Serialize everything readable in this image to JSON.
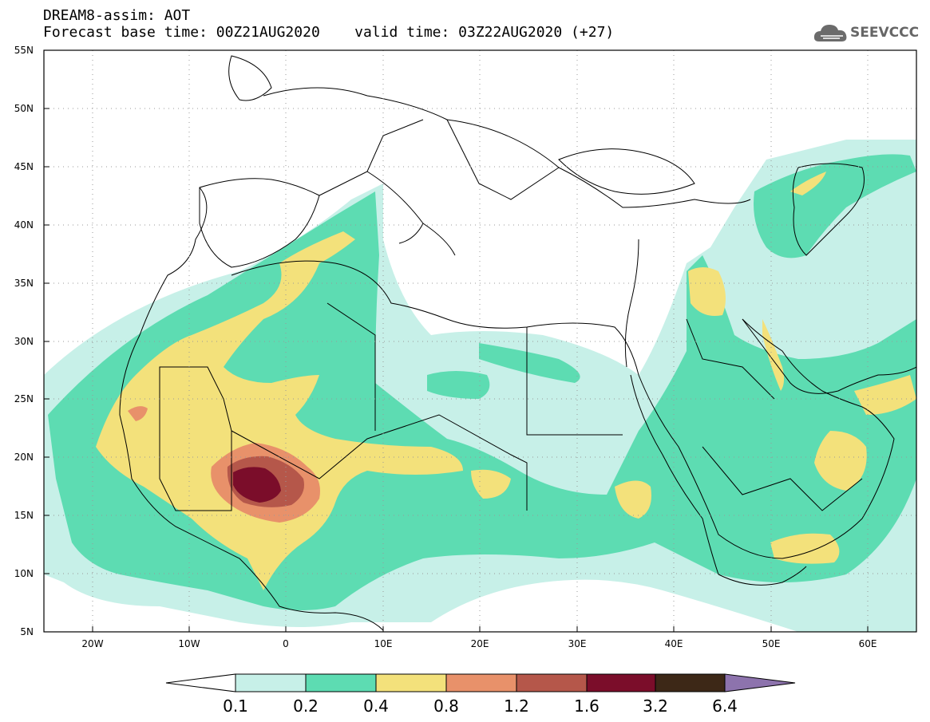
{
  "header": {
    "line1": "DREAM8-assim: AOT",
    "line2": "Forecast base time: 00Z21AUG2020    valid time: 03Z22AUG2020 (+27)"
  },
  "logo": {
    "text": "SEEVCCC",
    "icon": "cloud-icon"
  },
  "map": {
    "lon_range": [
      -25,
      65
    ],
    "lat_range": [
      5,
      55
    ],
    "lat_labels": [
      "55N",
      "50N",
      "45N",
      "40N",
      "35N",
      "30N",
      "25N",
      "20N",
      "15N",
      "10N",
      "5N"
    ],
    "lon_labels": [
      "20W",
      "10W",
      "0",
      "10E",
      "20E",
      "30E",
      "40E",
      "50E",
      "60E"
    ],
    "colors": {
      "c01": "#c7f0e8",
      "c02": "#5ddcb2",
      "c04": "#f3e17b",
      "c08": "#e8916a",
      "c12": "#b5574a",
      "c16": "#7b0d2a",
      "c32": "#3d2817",
      "c64": "#8d73ad"
    }
  },
  "colorbar": {
    "labels": [
      "0.1",
      "0.2",
      "0.4",
      "0.8",
      "1.2",
      "1.6",
      "3.2",
      "6.4"
    ],
    "colors": [
      "#c7f0e8",
      "#5ddcb2",
      "#f3e17b",
      "#e8916a",
      "#b5574a",
      "#7b0d2a",
      "#3d2817"
    ],
    "under_color": "#ffffff",
    "over_color": "#8d73ad"
  }
}
